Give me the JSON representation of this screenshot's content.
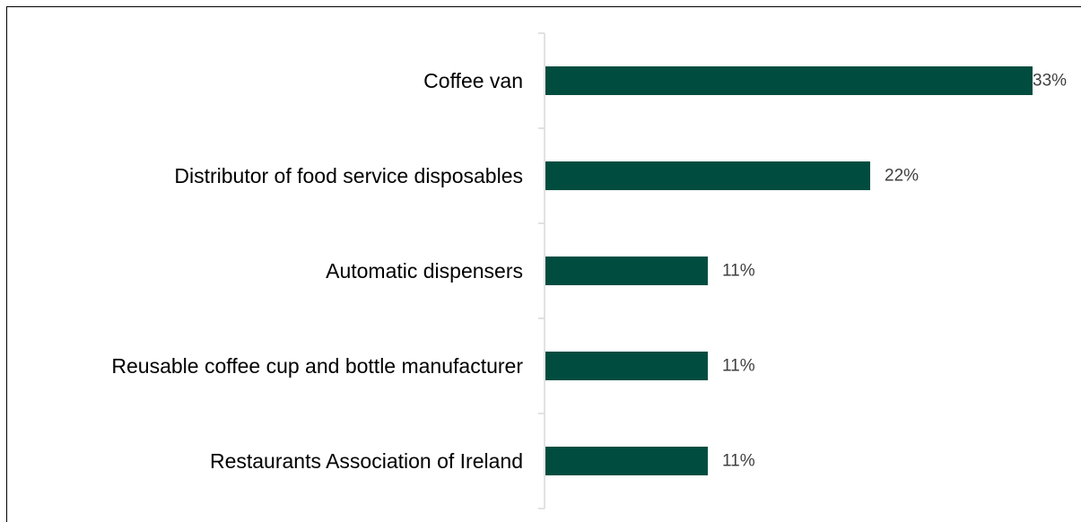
{
  "chart_data": {
    "type": "bar",
    "orientation": "horizontal",
    "categories": [
      "Coffee van",
      "Distributor of food service disposables",
      "Automatic dispensers",
      "Reusable coffee cup and bottle manufacturer",
      "Restaurants Association of Ireland"
    ],
    "values": [
      33,
      22,
      11,
      11,
      11
    ],
    "value_labels": [
      "33%",
      "22%",
      "11%",
      "11%",
      "11%"
    ],
    "xlim": [
      0,
      33
    ],
    "grid": false,
    "legend": "none",
    "colors": {
      "bar": "#004D40",
      "axis": "#D9D9D9",
      "frame": "#000000"
    }
  }
}
